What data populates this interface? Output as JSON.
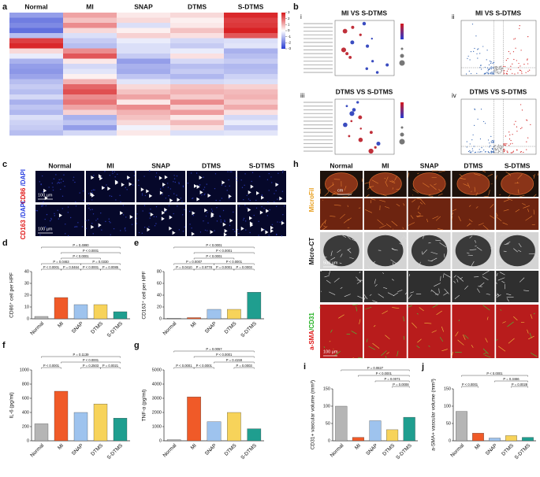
{
  "panel_labels": [
    "a",
    "b",
    "c",
    "d",
    "e",
    "f",
    "g",
    "h",
    "i",
    "j"
  ],
  "heatmap": {
    "columns": [
      "Normal",
      "MI",
      "SNAP",
      "DTMS",
      "S-DTMS"
    ],
    "colorbar_ticks": [
      3,
      2,
      1,
      0,
      -1,
      -2,
      -3
    ],
    "values": [
      [
        -1.5,
        1.2,
        0.3,
        0.5,
        2.8
      ],
      [
        -2.0,
        0.8,
        0.5,
        0.2,
        2.5
      ],
      [
        -1.8,
        1.5,
        -0.5,
        0.3,
        2.6
      ],
      [
        -2.2,
        0.5,
        0.2,
        0.8,
        2.9
      ],
      [
        -1.0,
        -0.5,
        0.6,
        0.4,
        2.2
      ],
      [
        2.5,
        -0.8,
        -0.3,
        -0.6,
        -0.5
      ],
      [
        2.8,
        -1.0,
        -0.5,
        -0.8,
        -0.4
      ],
      [
        0.5,
        1.5,
        -0.5,
        -0.3,
        -1.2
      ],
      [
        -0.3,
        2.2,
        -0.8,
        0.4,
        -1.0
      ],
      [
        -1.2,
        0.3,
        -1.5,
        -0.6,
        -0.8
      ],
      [
        -1.5,
        -0.6,
        -1.2,
        -1.0,
        -1.1
      ],
      [
        -1.6,
        -0.4,
        -1.3,
        -0.8,
        -1.0
      ],
      [
        -1.4,
        0.2,
        -0.9,
        -1.1,
        -0.7
      ],
      [
        -1.0,
        1.0,
        -0.4,
        -0.6,
        -0.5
      ],
      [
        -0.8,
        2.0,
        0.5,
        0.8,
        0.6
      ],
      [
        -1.0,
        2.3,
        0.8,
        1.0,
        0.9
      ],
      [
        -0.6,
        1.5,
        1.2,
        0.7,
        1.0
      ],
      [
        -1.2,
        1.8,
        0.3,
        1.5,
        0.7
      ],
      [
        -0.9,
        1.2,
        1.5,
        0.6,
        1.1
      ],
      [
        -1.1,
        0.6,
        1.0,
        1.3,
        0.4
      ],
      [
        -0.5,
        -1.2,
        0.8,
        0.3,
        -0.6
      ],
      [
        -0.7,
        -0.9,
        0.5,
        0.9,
        -0.3
      ],
      [
        -0.8,
        -1.5,
        -0.2,
        0.4,
        -0.8
      ],
      [
        -1.0,
        -0.6,
        0.3,
        -0.5,
        -0.4
      ]
    ]
  },
  "enrichment": {
    "subpanels": [
      "i",
      "ii",
      "iii",
      "iv"
    ],
    "titles": [
      "MI VS S-DTMS",
      "MI VS S-DTMS",
      "DTMS VS S-DTMS",
      "DTMS VS S-DTMS"
    ]
  },
  "staining": {
    "columns": [
      "Normal",
      "MI",
      "SNAP",
      "DTMS",
      "S-DTMS"
    ],
    "rows": [
      [
        "CD86",
        " /DAPI"
      ],
      [
        "CD163",
        " /DAPI"
      ]
    ],
    "scales": [
      "100 µm",
      "100 µm"
    ]
  },
  "imaging": {
    "columns": [
      "Normal",
      "MI",
      "SNAP",
      "DTMS",
      "S-DTMS"
    ],
    "rows": {
      "microfil": "MicroFil",
      "microct": "Micro-CT",
      "asma": "a-SMA",
      "cd31": "/CD31"
    },
    "scales": [
      "cm",
      "500 µm",
      "100 µm"
    ]
  },
  "chart_data": [
    {
      "type": "bar",
      "ylabel": "CD86⁺ cell per HPF",
      "categories": [
        "Normal",
        "MI",
        "SNAP",
        "DTMS",
        "S-DTMS"
      ],
      "values": [
        2,
        18,
        12,
        12,
        6
      ],
      "colors": [
        "#b5b5b5",
        "#f05a28",
        "#9ec3ee",
        "#f7d35a",
        "#1f9e8f"
      ],
      "ylim": [
        0,
        40
      ],
      "yticks": [
        0,
        10,
        20,
        30,
        40
      ],
      "annotations": [
        "P = 0.4990",
        "P < 0.0001",
        "P = 0.0463",
        "P < 0.0001",
        "P = 0.0330",
        "P < 0.0001",
        "P = 0.0464",
        "P < 0.0001",
        "P = 0.0085"
      ]
    },
    {
      "type": "bar",
      "ylabel": "CD163⁺ cell per HPF",
      "categories": [
        "Normal",
        "MI",
        "SNAP",
        "DTMS",
        "S-DTMS"
      ],
      "values": [
        1,
        2,
        16,
        16,
        45
      ],
      "colors": [
        "#b5b5b5",
        "#f05a28",
        "#9ec3ee",
        "#f7d35a",
        "#1f9e8f"
      ],
      "ylim": [
        0,
        80
      ],
      "yticks": [
        0,
        20,
        40,
        60,
        80
      ],
      "annotations": [
        "P < 0.0001",
        "P < 0.0001",
        "P < 0.0001",
        "P < 0.0001",
        "P = 0.0007",
        "P = 0.0410",
        "P = 0.9778",
        "P = 0.0001",
        "P = 0.0003"
      ]
    },
    {
      "type": "bar",
      "ylabel": "IL-6 (pg/ml)",
      "categories": [
        "Normal",
        "MI",
        "SNAP",
        "DTMS",
        "S-DTMS"
      ],
      "values": [
        240,
        700,
        400,
        520,
        320
      ],
      "colors": [
        "#b5b5b5",
        "#f05a28",
        "#9ec3ee",
        "#f7d35a",
        "#1f9e8f"
      ],
      "ylim": [
        0,
        1000
      ],
      "yticks": [
        0,
        200,
        400,
        600,
        800,
        1000
      ],
      "annotations": [
        "P = 0.1139",
        "P < 0.0001",
        "P < 0.0001",
        "P = 0.2503",
        "P = 0.0021"
      ]
    },
    {
      "type": "bar",
      "ylabel": "TNF-α (pg/ml)",
      "categories": [
        "Normal",
        "MI",
        "SNAP",
        "DTMS",
        "S-DTMS"
      ],
      "values": [
        80,
        3100,
        1350,
        2000,
        850
      ],
      "colors": [
        "#b5b5b5",
        "#f05a28",
        "#9ec3ee",
        "#f7d35a",
        "#1f9e8f"
      ],
      "ylim": [
        0,
        5000
      ],
      "yticks": [
        0,
        1000,
        2000,
        3000,
        4000,
        5000
      ],
      "annotations": [
        "P = 0.0057",
        "P < 0.0001",
        "P = 0.4159",
        "P < 0.0001",
        "P < 0.0001",
        "P = 0.0003"
      ]
    },
    {
      "type": "bar",
      "ylabel": "CD31+ vascular volume (mm³)",
      "categories": [
        "Normal",
        "MI",
        "SNAP",
        "DTMS",
        "S-DTMS"
      ],
      "values": [
        100,
        10,
        58,
        32,
        68
      ],
      "colors": [
        "#b5b5b5",
        "#f05a28",
        "#9ec3ee",
        "#f7d35a",
        "#1f9e8f"
      ],
      "ylim": [
        0,
        150
      ],
      "yticks": [
        0,
        50,
        100,
        150
      ],
      "annotations": [
        "P = 0.0827",
        "P < 0.0001",
        "P = 0.0071",
        "P = 0.0008"
      ]
    },
    {
      "type": "bar",
      "ylabel": "a-SMA+ vascular volume (mm³)",
      "categories": [
        "Normal",
        "MI",
        "SNAP",
        "DTMS",
        "S-DTMS"
      ],
      "values": [
        85,
        22,
        8,
        15,
        10
      ],
      "colors": [
        "#b5b5b5",
        "#f05a28",
        "#9ec3ee",
        "#f7d35a",
        "#1f9e8f"
      ],
      "ylim": [
        0,
        150
      ],
      "yticks": [
        0,
        50,
        100,
        150
      ],
      "annotations": [
        "P < 0.0001",
        "P = 0.3466",
        "P < 0.0001",
        "P = 0.0028"
      ]
    }
  ]
}
